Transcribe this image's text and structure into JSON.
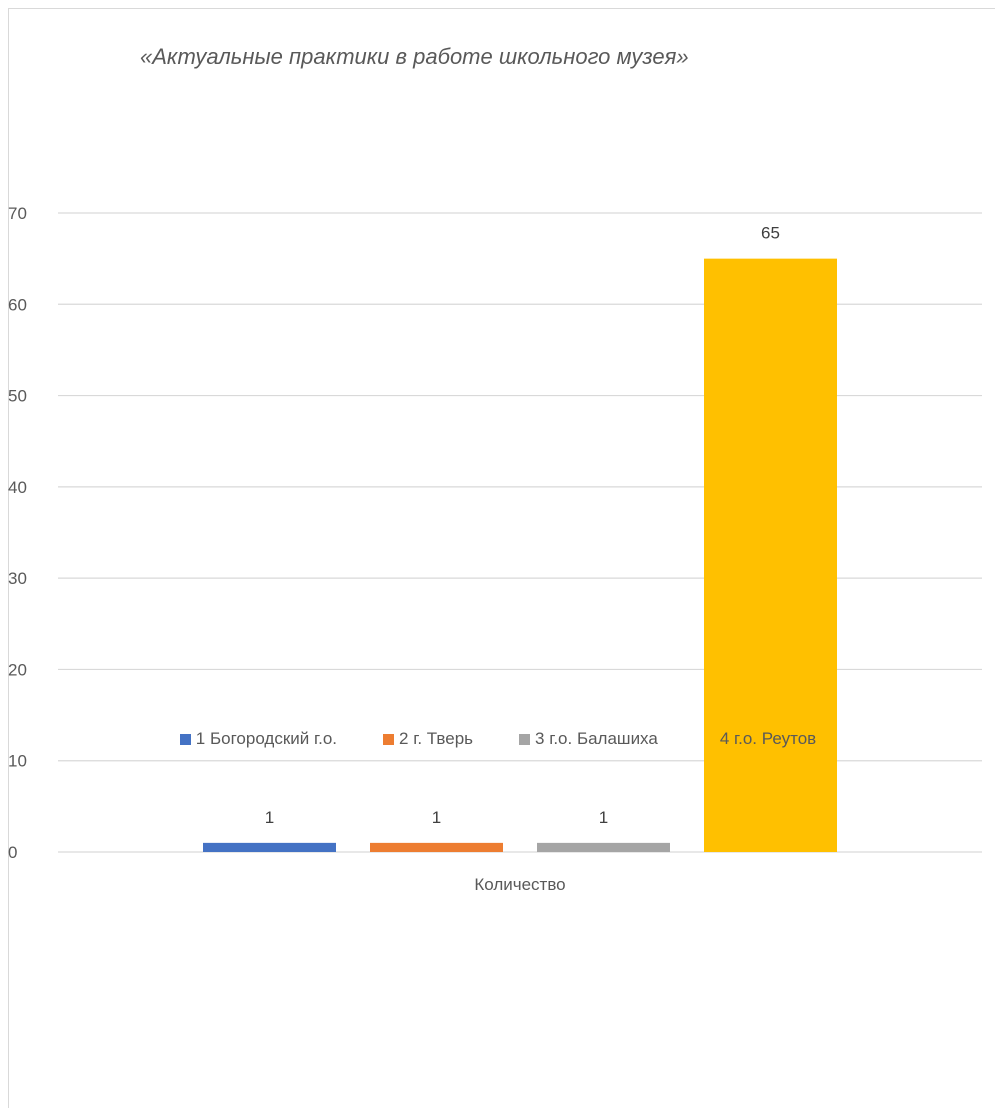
{
  "chart_data": {
    "type": "bar",
    "title": "«Актуальные практики в работе школьного музея»",
    "categories": [
      "Количество"
    ],
    "series": [
      {
        "name": "1 Богородский г.о.",
        "values": [
          1
        ],
        "color": "#4472c4"
      },
      {
        "name": "2 г. Тверь",
        "values": [
          1
        ],
        "color": "#ed7d31"
      },
      {
        "name": "3 г.о. Балашиха",
        "values": [
          1
        ],
        "color": "#a5a5a5"
      },
      {
        "name": "4 г.о. Реутов",
        "values": [
          65
        ],
        "color": "#ffc000"
      }
    ],
    "yticks": [
      0,
      10,
      20,
      30,
      40,
      50,
      60,
      70
    ],
    "ylim": [
      0,
      70
    ],
    "xlabel": "",
    "ylabel": "",
    "grid": true,
    "data_labels": true,
    "legend_position": "bottom"
  }
}
